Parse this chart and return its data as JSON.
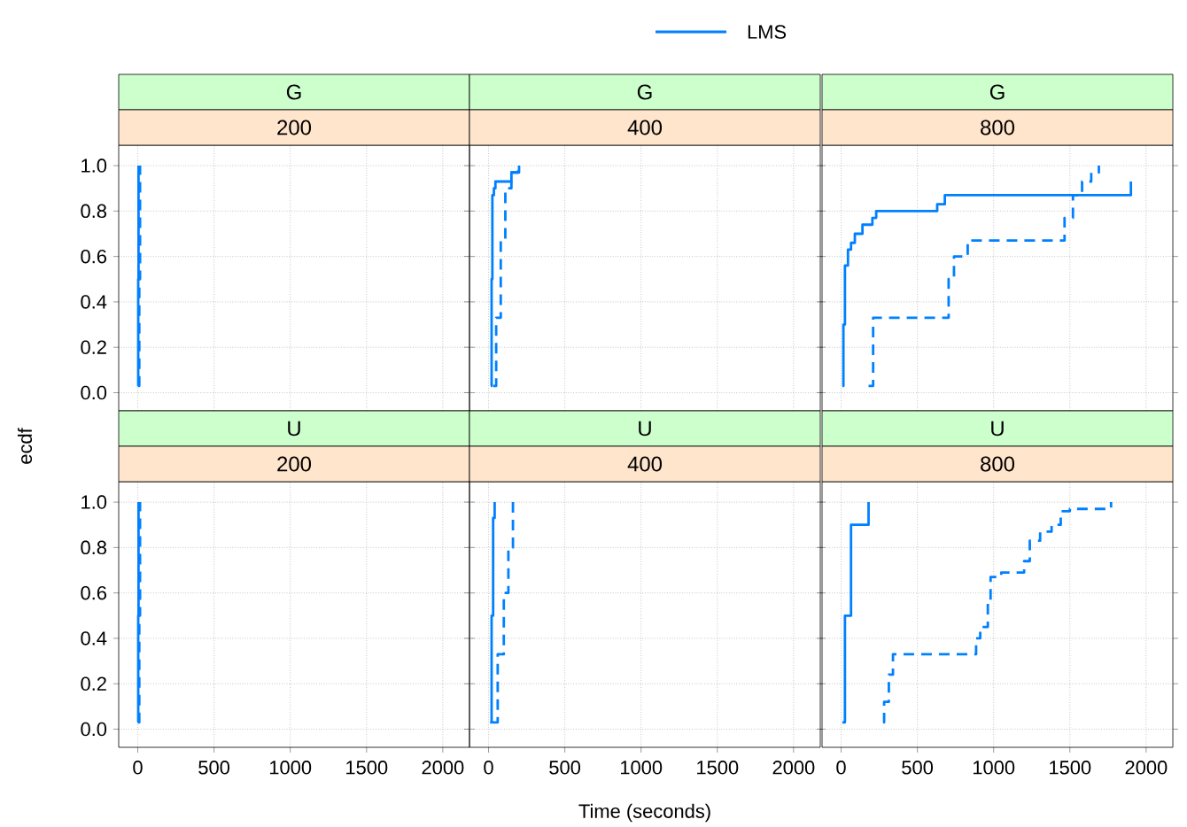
{
  "chart_data": [
    {
      "type": "step",
      "title": "G",
      "subtitle": "200",
      "legend": "top",
      "grid": true,
      "tick_labels": "y",
      "xlim": [
        -125,
        2175
      ],
      "ylim": [
        -0.08,
        1.09
      ],
      "xticks": [
        {
          "value": 0,
          "label": null
        },
        {
          "value": 500,
          "label": null
        },
        {
          "value": 1000,
          "label": null
        },
        {
          "value": 1500,
          "label": null
        },
        {
          "value": 2000,
          "label": null
        }
      ],
      "yticks": [
        {
          "value": 0,
          "label": "0.0"
        },
        {
          "value": 0.2,
          "label": "0.2"
        },
        {
          "value": 0.4,
          "label": "0.4"
        },
        {
          "value": 0.6,
          "label": "0.6"
        },
        {
          "value": 0.8,
          "label": "0.8"
        },
        {
          "value": 1,
          "label": "1.0"
        }
      ],
      "series": [
        {
          "color": "#0080ff",
          "line_style": "dashed",
          "x": [
            5,
            10,
            15
          ],
          "values": [
            0.03,
            0.5,
            1.0
          ]
        },
        {
          "name": "LMS",
          "color": "#0080ff",
          "line_style": "solid",
          "x": [
            0,
            3,
            5
          ],
          "values": [
            0.03,
            0.5,
            1.0
          ]
        }
      ]
    },
    {
      "type": "step",
      "title": "G",
      "subtitle": "400",
      "grid": true,
      "tick_labels": false,
      "xlim": [
        -125,
        2175
      ],
      "ylim": [
        -0.08,
        1.09
      ],
      "xticks": [
        {
          "value": 0,
          "label": null
        },
        {
          "value": 500,
          "label": null
        },
        {
          "value": 1000,
          "label": null
        },
        {
          "value": 1500,
          "label": null
        },
        {
          "value": 2000,
          "label": null
        }
      ],
      "yticks": [
        {
          "value": 0,
          "label": null
        },
        {
          "value": 0.2,
          "label": null
        },
        {
          "value": 0.4,
          "label": null
        },
        {
          "value": 0.6,
          "label": null
        },
        {
          "value": 0.8,
          "label": null
        },
        {
          "value": 1,
          "label": null
        }
      ],
      "series": [
        {
          "color": "#0080ff",
          "line_style": "dashed",
          "x": [
            30,
            50,
            80,
            110,
            150,
            195
          ],
          "values": [
            0.03,
            0.33,
            0.67,
            0.9,
            0.97,
            1.0
          ]
        },
        {
          "color": "#0080ff",
          "line_style": "solid",
          "x": [
            15,
            20,
            25,
            35,
            45,
            115,
            150,
            200
          ],
          "values": [
            0.03,
            0.5,
            0.87,
            0.9,
            0.93,
            0.93,
            0.97,
            1.0
          ]
        }
      ]
    },
    {
      "type": "step",
      "title": "G",
      "subtitle": "800",
      "grid": true,
      "tick_labels": false,
      "xlim": [
        -125,
        2175
      ],
      "ylim": [
        -0.08,
        1.09
      ],
      "xticks": [
        {
          "value": 0,
          "label": null
        },
        {
          "value": 500,
          "label": null
        },
        {
          "value": 1000,
          "label": null
        },
        {
          "value": 1500,
          "label": null
        },
        {
          "value": 2000,
          "label": null
        }
      ],
      "yticks": [
        {
          "value": 0,
          "label": null
        },
        {
          "value": 0.2,
          "label": null
        },
        {
          "value": 0.4,
          "label": null
        },
        {
          "value": 0.6,
          "label": null
        },
        {
          "value": 0.8,
          "label": null
        },
        {
          "value": 1,
          "label": null
        }
      ],
      "series": [
        {
          "color": "#0080ff",
          "line_style": "dashed",
          "x": [
            180,
            210,
            705,
            740,
            830,
            1465,
            1520,
            1580,
            1640,
            1690
          ],
          "values": [
            0.03,
            0.33,
            0.5,
            0.6,
            0.67,
            0.77,
            0.87,
            0.93,
            0.97,
            1.0
          ]
        },
        {
          "color": "#0080ff",
          "line_style": "solid",
          "x": [
            8,
            15,
            25,
            45,
            65,
            90,
            140,
            205,
            230,
            630,
            680,
            1900
          ],
          "values": [
            0.03,
            0.3,
            0.56,
            0.63,
            0.66,
            0.7,
            0.74,
            0.77,
            0.8,
            0.83,
            0.87,
            0.93
          ]
        }
      ]
    },
    {
      "type": "step",
      "title": "U",
      "subtitle": "200",
      "ylabel": "ecdf",
      "grid": true,
      "xlim": [
        -125,
        2175
      ],
      "ylim": [
        -0.08,
        1.09
      ],
      "xticks": [
        0,
        500,
        1000,
        1500,
        2000
      ],
      "yticks": [
        {
          "value": 0,
          "label": "0.0"
        },
        {
          "value": 0.2,
          "label": "0.2"
        },
        {
          "value": 0.4,
          "label": "0.4"
        },
        {
          "value": 0.6,
          "label": "0.6"
        },
        {
          "value": 0.8,
          "label": "0.8"
        },
        {
          "value": 1,
          "label": "1.0"
        }
      ],
      "series": [
        {
          "color": "#0080ff",
          "line_style": "dashed",
          "x": [
            5,
            10,
            15
          ],
          "values": [
            0.03,
            0.5,
            1.0
          ]
        },
        {
          "color": "#0080ff",
          "line_style": "solid",
          "x": [
            0,
            3,
            5
          ],
          "values": [
            0.03,
            0.5,
            1.0
          ]
        }
      ]
    },
    {
      "type": "step",
      "title": "U",
      "subtitle": "400",
      "xlabel": "Time (seconds)",
      "grid": true,
      "tick_labels": "x",
      "xlim": [
        -125,
        2175
      ],
      "ylim": [
        -0.08,
        1.09
      ],
      "xticks": [
        0,
        500,
        1000,
        1500,
        2000
      ],
      "yticks": [
        {
          "value": 0,
          "label": null
        },
        {
          "value": 0.2,
          "label": null
        },
        {
          "value": 0.4,
          "label": null
        },
        {
          "value": 0.6,
          "label": null
        },
        {
          "value": 0.8,
          "label": null
        },
        {
          "value": 1,
          "label": null
        }
      ],
      "series": [
        {
          "color": "#0080ff",
          "line_style": "dashed",
          "x": [
            25,
            60,
            100,
            130,
            160
          ],
          "values": [
            0.03,
            0.33,
            0.6,
            0.8,
            1.0
          ]
        },
        {
          "color": "#0080ff",
          "line_style": "solid",
          "x": [
            10,
            20,
            30,
            40
          ],
          "values": [
            0.03,
            0.5,
            0.93,
            1.0
          ]
        }
      ]
    },
    {
      "type": "step",
      "title": "U",
      "subtitle": "800",
      "grid": true,
      "tick_labels": "x",
      "xlim": [
        -125,
        2175
      ],
      "ylim": [
        -0.08,
        1.09
      ],
      "xticks": [
        0,
        500,
        1000,
        1500,
        2000
      ],
      "yticks": [
        {
          "value": 0,
          "label": null
        },
        {
          "value": 0.2,
          "label": null
        },
        {
          "value": 0.4,
          "label": null
        },
        {
          "value": 0.6,
          "label": null
        },
        {
          "value": 0.8,
          "label": null
        },
        {
          "value": 1,
          "label": null
        }
      ],
      "series": [
        {
          "color": "#0080ff",
          "line_style": "dashed",
          "x": [
            275,
            282,
            313,
            340,
            885,
            912,
            962,
            980,
            1050,
            1200,
            1237,
            1305,
            1380,
            1440,
            1500,
            1770
          ],
          "values": [
            0.03,
            0.12,
            0.24,
            0.33,
            0.4,
            0.45,
            0.56,
            0.67,
            0.69,
            0.74,
            0.83,
            0.87,
            0.9,
            0.96,
            0.97,
            1.0
          ]
        },
        {
          "color": "#0080ff",
          "line_style": "solid",
          "x": [
            8,
            25,
            65,
            180
          ],
          "values": [
            0.03,
            0.5,
            0.9,
            1.0
          ]
        }
      ]
    }
  ]
}
